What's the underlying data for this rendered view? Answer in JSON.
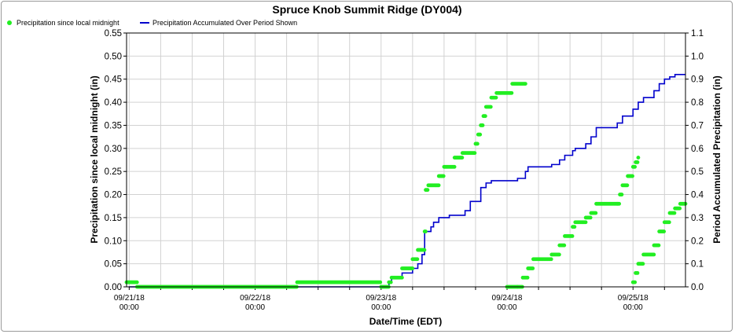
{
  "chart_data": {
    "type": "scatter+line",
    "title": "Spruce Knob Summit Ridge (DY004)",
    "xlabel": "Date/Time (EDT)",
    "ylabel_left": "Precipitation since local midnight (in)",
    "ylabel_right": "Period Accumulated Precipitation (in)",
    "ylim_left": [
      0,
      0.55
    ],
    "ylim_right": [
      0,
      1.1
    ],
    "yticks_left": [
      "0.00",
      "0.05",
      "0.10",
      "0.15",
      "0.20",
      "0.25",
      "0.30",
      "0.35",
      "0.40",
      "0.45",
      "0.50",
      "0.55"
    ],
    "yticks_right": [
      "0.0",
      "0.1",
      "0.2",
      "0.3",
      "0.4",
      "0.5",
      "0.6",
      "0.7",
      "0.8",
      "0.9",
      "1.0",
      "1.1"
    ],
    "xlim_hours": [
      -0.5,
      106
    ],
    "xticks": [
      {
        "hour": 0,
        "date": "09/21/18",
        "time": "00:00"
      },
      {
        "hour": 24,
        "date": "09/22/18",
        "time": "00:00"
      },
      {
        "hour": 48,
        "date": "09/23/18",
        "time": "00:00"
      },
      {
        "hour": 72,
        "date": "09/24/18",
        "time": "00:00"
      },
      {
        "hour": 96,
        "date": "09/25/18",
        "time": "00:00"
      }
    ],
    "grid": true,
    "legend_position": "top-left",
    "series": [
      {
        "name": "Precipitation since local midnight",
        "marker": "circle",
        "color": "#22ee22",
        "axis": "left",
        "steps": [
          [
            -0.5,
            0.01
          ],
          [
            1.5,
            0.0
          ],
          [
            32,
            0.01
          ],
          [
            48,
            0.0
          ],
          [
            49.5,
            0.01
          ],
          [
            50,
            0.02
          ],
          [
            52,
            0.04
          ],
          [
            54,
            0.06
          ],
          [
            55,
            0.08
          ],
          [
            56.3,
            0.12
          ],
          [
            56.5,
            0.21
          ],
          [
            57,
            0.22
          ],
          [
            59,
            0.24
          ],
          [
            60,
            0.26
          ],
          [
            62,
            0.28
          ],
          [
            63.5,
            0.29
          ],
          [
            66,
            0.31
          ],
          [
            66.5,
            0.33
          ],
          [
            67,
            0.35
          ],
          [
            67.5,
            0.37
          ],
          [
            68,
            0.39
          ],
          [
            69,
            0.41
          ],
          [
            70,
            0.42
          ],
          [
            73,
            0.44
          ],
          [
            75.5,
            0.44
          ],
          [
            72,
            0.0
          ],
          [
            74,
            0.0
          ],
          [
            75,
            0.02
          ],
          [
            76,
            0.04
          ],
          [
            77,
            0.06
          ],
          [
            80.5,
            0.07
          ],
          [
            82,
            0.09
          ],
          [
            83,
            0.11
          ],
          [
            84.5,
            0.13
          ],
          [
            85,
            0.14
          ],
          [
            87,
            0.15
          ],
          [
            88,
            0.16
          ],
          [
            89,
            0.18
          ],
          [
            93,
            0.18
          ],
          [
            93.5,
            0.2
          ],
          [
            94,
            0.22
          ],
          [
            95,
            0.24
          ],
          [
            96,
            0.26
          ],
          [
            96.5,
            0.27
          ],
          [
            97,
            0.28
          ],
          [
            96,
            0.01
          ],
          [
            96.5,
            0.03
          ],
          [
            97,
            0.05
          ],
          [
            98,
            0.07
          ],
          [
            100,
            0.09
          ],
          [
            101,
            0.12
          ],
          [
            102,
            0.14
          ],
          [
            103,
            0.16
          ],
          [
            104,
            0.17
          ],
          [
            105,
            0.18
          ],
          [
            106,
            0.18
          ]
        ]
      },
      {
        "name": "Precipitation Accumulated Over Period Shown",
        "color": "#0000cc",
        "axis": "right",
        "steps": [
          [
            0,
            0.0
          ],
          [
            49.5,
            0.02
          ],
          [
            50,
            0.04
          ],
          [
            52,
            0.06
          ],
          [
            54,
            0.08
          ],
          [
            55,
            0.1
          ],
          [
            55.8,
            0.14
          ],
          [
            56.3,
            0.24
          ],
          [
            57.5,
            0.26
          ],
          [
            58,
            0.28
          ],
          [
            59,
            0.3
          ],
          [
            61,
            0.31
          ],
          [
            64,
            0.33
          ],
          [
            65,
            0.37
          ],
          [
            67,
            0.43
          ],
          [
            68,
            0.45
          ],
          [
            69,
            0.46
          ],
          [
            74,
            0.47
          ],
          [
            75.5,
            0.5
          ],
          [
            76,
            0.52
          ],
          [
            80.5,
            0.53
          ],
          [
            82,
            0.55
          ],
          [
            83,
            0.57
          ],
          [
            84.5,
            0.59
          ],
          [
            85,
            0.6
          ],
          [
            87,
            0.62
          ],
          [
            88,
            0.65
          ],
          [
            89,
            0.69
          ],
          [
            93,
            0.71
          ],
          [
            94,
            0.74
          ],
          [
            96,
            0.77
          ],
          [
            97,
            0.8
          ],
          [
            98,
            0.82
          ],
          [
            100,
            0.85
          ],
          [
            101,
            0.88
          ],
          [
            102,
            0.9
          ],
          [
            103,
            0.91
          ],
          [
            104,
            0.92
          ],
          [
            106,
            0.92
          ]
        ]
      }
    ]
  }
}
